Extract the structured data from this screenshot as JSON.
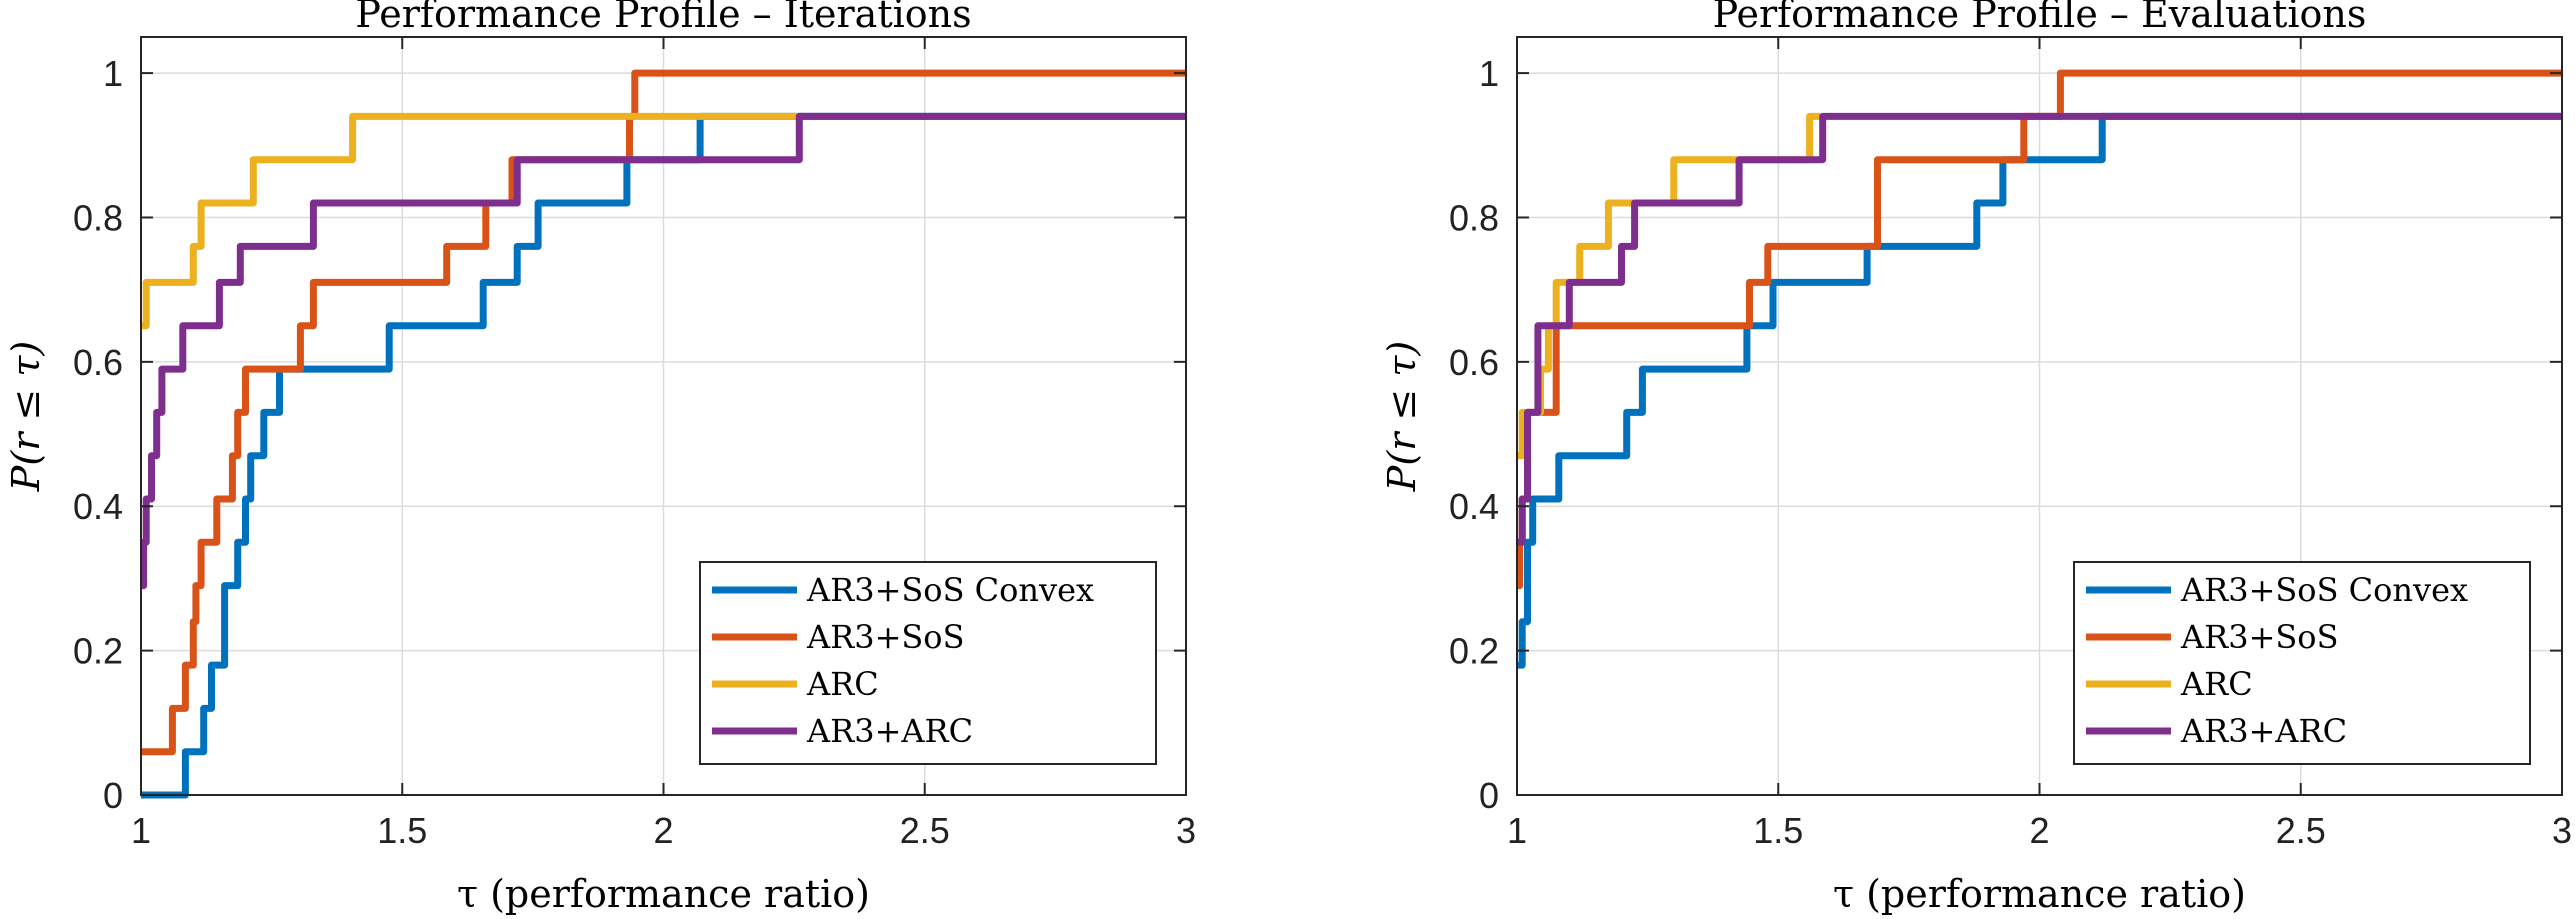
{
  "chart_data": [
    {
      "type": "line",
      "title": "Performance Profile – Iterations",
      "xlabel": "τ (performance ratio)",
      "ylabel": "P(r ≤ τ)",
      "xlim": [
        1,
        3
      ],
      "ylim": [
        0,
        1.05
      ],
      "xticks": [
        1,
        1.5,
        2,
        2.5,
        3
      ],
      "xtick_labels": [
        "1",
        "1.5",
        "2",
        "2.5",
        "3"
      ],
      "yticks": [
        0,
        0.2,
        0.4,
        0.6,
        0.8,
        1
      ],
      "ytick_labels": [
        "0",
        "0.2",
        "0.4",
        "0.6",
        "0.8",
        "1"
      ],
      "grid": true,
      "legend_position": "bottom-right",
      "series": [
        {
          "name": "AR3+SoS Convex",
          "color": "#0072BD",
          "x": [
            1,
            1.07,
            1.085,
            1.11,
            1.12,
            1.135,
            1.145,
            1.16,
            1.175,
            1.185,
            1.2,
            1.21,
            1.225,
            1.235,
            1.25,
            1.265,
            1.45,
            1.475,
            1.63,
            1.655,
            1.7,
            1.72,
            1.74,
            1.76,
            1.79,
            1.815,
            1.9,
            1.93,
            1.945,
            1.96,
            2.04,
            2.07,
            3
          ],
          "y": [
            0,
            0,
            0.06,
            0.06,
            0.12,
            0.18,
            0.18,
            0.29,
            0.29,
            0.35,
            0.41,
            0.47,
            0.47,
            0.53,
            0.53,
            0.59,
            0.59,
            0.65,
            0.65,
            0.71,
            0.71,
            0.76,
            0.76,
            0.82,
            0.82,
            0.82,
            0.82,
            0.88,
            0.88,
            0.88,
            0.88,
            0.94,
            0.94
          ]
        },
        {
          "name": "AR3+SoS",
          "color": "#D95319",
          "x": [
            1,
            1.05,
            1.06,
            1.075,
            1.085,
            1.1,
            1.105,
            1.115,
            1.13,
            1.145,
            1.16,
            1.175,
            1.185,
            1.2,
            1.29,
            1.305,
            1.33,
            1.565,
            1.585,
            1.64,
            1.66,
            1.685,
            1.71,
            1.74,
            1.93,
            1.935,
            1.945,
            3
          ],
          "y": [
            0.06,
            0.06,
            0.12,
            0.12,
            0.18,
            0.24,
            0.29,
            0.35,
            0.35,
            0.41,
            0.41,
            0.47,
            0.53,
            0.59,
            0.59,
            0.65,
            0.71,
            0.71,
            0.76,
            0.76,
            0.82,
            0.82,
            0.88,
            0.88,
            0.88,
            0.94,
            1.0,
            1.0
          ]
        },
        {
          "name": "ARC",
          "color": "#EDB120",
          "x": [
            1,
            1.01,
            1.09,
            1.1,
            1.115,
            1.2,
            1.215,
            1.32,
            1.39,
            1.405,
            2.26,
            2.27
          ],
          "y": [
            0.65,
            0.71,
            0.71,
            0.76,
            0.82,
            0.82,
            0.88,
            0.88,
            0.88,
            0.94,
            0.94,
            0.94
          ]
        },
        {
          "name": "AR3+ARC",
          "color": "#7E2F8E",
          "x": [
            1,
            1.005,
            1.01,
            1.02,
            1.03,
            1.04,
            1.06,
            1.075,
            1.08,
            1.13,
            1.15,
            1.165,
            1.19,
            1.21,
            1.305,
            1.31,
            1.33,
            1.34,
            1.7,
            1.72,
            1.92,
            1.94,
            2.24,
            2.26,
            3
          ],
          "y": [
            0.29,
            0.35,
            0.41,
            0.47,
            0.53,
            0.59,
            0.59,
            0.59,
            0.65,
            0.65,
            0.71,
            0.71,
            0.76,
            0.76,
            0.76,
            0.76,
            0.82,
            0.82,
            0.82,
            0.88,
            0.88,
            0.88,
            0.88,
            0.94,
            0.94
          ]
        }
      ]
    },
    {
      "type": "line",
      "title": "Performance Profile – Evaluations",
      "xlabel": "τ (performance ratio)",
      "ylabel": "P(r ≤ τ)",
      "xlim": [
        1,
        3
      ],
      "ylim": [
        0,
        1.05
      ],
      "xticks": [
        1,
        1.5,
        2,
        2.5,
        3
      ],
      "xtick_labels": [
        "1",
        "1.5",
        "2",
        "2.5",
        "3"
      ],
      "yticks": [
        0,
        0.2,
        0.4,
        0.6,
        0.8,
        1
      ],
      "ytick_labels": [
        "0",
        "0.2",
        "0.4",
        "0.6",
        "0.8",
        "1"
      ],
      "grid": true,
      "legend_position": "bottom-right",
      "series": [
        {
          "name": "AR3+SoS Convex",
          "color": "#0072BD",
          "x": [
            1,
            1.01,
            1.02,
            1.03,
            1.05,
            1.06,
            1.08,
            1.1,
            1.195,
            1.21,
            1.225,
            1.24,
            1.25,
            1.42,
            1.44,
            1.46,
            1.49,
            1.65,
            1.67,
            1.69,
            1.86,
            1.88,
            1.9,
            1.915,
            1.93,
            2.09,
            2.12,
            3
          ],
          "y": [
            0.18,
            0.24,
            0.35,
            0.41,
            0.41,
            0.41,
            0.47,
            0.47,
            0.47,
            0.53,
            0.53,
            0.59,
            0.59,
            0.59,
            0.65,
            0.65,
            0.71,
            0.71,
            0.76,
            0.76,
            0.76,
            0.82,
            0.82,
            0.82,
            0.88,
            0.88,
            0.94,
            0.94
          ]
        },
        {
          "name": "AR3+SoS",
          "color": "#D95319",
          "x": [
            1,
            1.005,
            1.01,
            1.02,
            1.045,
            1.06,
            1.075,
            1.42,
            1.445,
            1.46,
            1.48,
            1.66,
            1.69,
            1.94,
            1.955,
            1.97,
            2.02,
            2.04,
            3
          ],
          "y": [
            0.29,
            0.35,
            0.41,
            0.53,
            0.53,
            0.53,
            0.65,
            0.65,
            0.71,
            0.71,
            0.76,
            0.76,
            0.88,
            0.88,
            0.88,
            0.94,
            0.94,
            1.0,
            1.0
          ]
        },
        {
          "name": "ARC",
          "color": "#EDB120",
          "x": [
            1,
            1.01,
            1.03,
            1.045,
            1.06,
            1.075,
            1.085,
            1.105,
            1.12,
            1.16,
            1.175,
            1.28,
            1.3,
            1.54,
            1.56,
            1.58
          ],
          "y": [
            0.47,
            0.53,
            0.53,
            0.59,
            0.65,
            0.71,
            0.71,
            0.71,
            0.76,
            0.76,
            0.82,
            0.82,
            0.88,
            0.88,
            0.94,
            0.94
          ]
        },
        {
          "name": "AR3+ARC",
          "color": "#7E2F8E",
          "x": [
            1,
            1.01,
            1.02,
            1.04,
            1.06,
            1.085,
            1.1,
            1.175,
            1.2,
            1.215,
            1.225,
            1.245,
            1.33,
            1.35,
            1.425,
            1.445,
            1.515,
            1.53,
            1.565,
            1.585,
            3
          ],
          "y": [
            0.35,
            0.41,
            0.53,
            0.65,
            0.65,
            0.65,
            0.71,
            0.71,
            0.76,
            0.76,
            0.82,
            0.82,
            0.82,
            0.82,
            0.88,
            0.88,
            0.88,
            0.88,
            0.88,
            0.94,
            0.94
          ]
        }
      ]
    }
  ]
}
